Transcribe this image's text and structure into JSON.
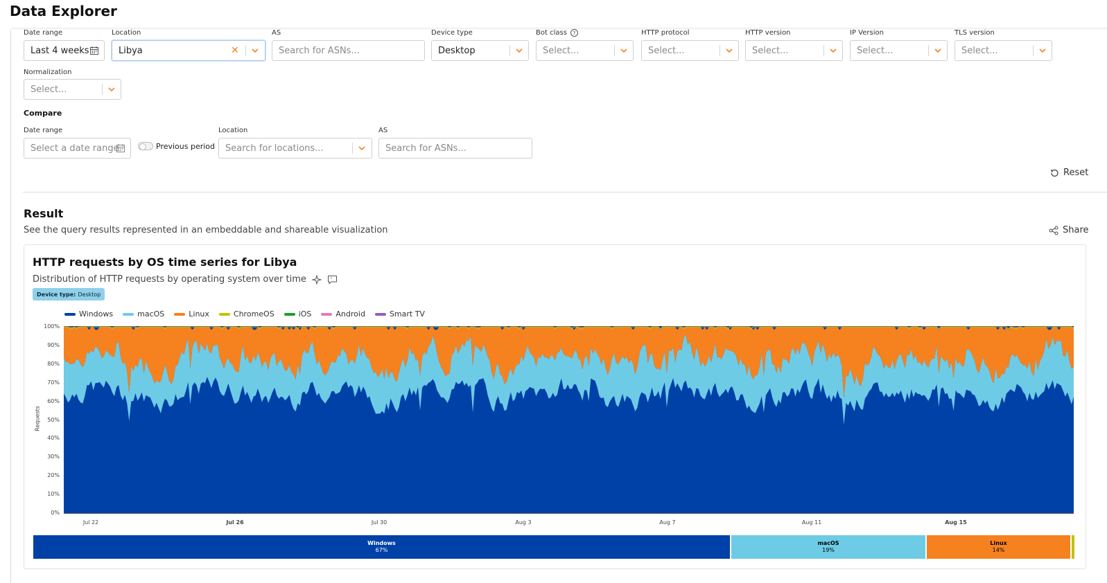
{
  "page": {
    "title": "Data Explorer"
  },
  "filters": {
    "date_range": {
      "label": "Date range",
      "value": "Last 4 weeks"
    },
    "location": {
      "label": "Location",
      "value": "Libya"
    },
    "as": {
      "label": "AS",
      "placeholder": "Search for ASNs..."
    },
    "device_type": {
      "label": "Device type",
      "value": "Desktop"
    },
    "bot_class": {
      "label": "Bot class",
      "placeholder": "Select..."
    },
    "http_protocol": {
      "label": "HTTP protocol",
      "placeholder": "Select..."
    },
    "http_version": {
      "label": "HTTP version",
      "placeholder": "Select..."
    },
    "ip_version": {
      "label": "IP Version",
      "placeholder": "Select..."
    },
    "tls_version": {
      "label": "TLS version",
      "placeholder": "Select..."
    },
    "normalization": {
      "label": "Normalization",
      "placeholder": "Select..."
    }
  },
  "compare": {
    "title": "Compare",
    "date_range": {
      "label": "Date range",
      "placeholder": "Select a date range"
    },
    "previous_period": "Previous period",
    "location": {
      "label": "Location",
      "placeholder": "Search for locations..."
    },
    "as": {
      "label": "AS",
      "placeholder": "Search for ASNs..."
    },
    "reset_label": "Reset"
  },
  "result": {
    "title": "Result",
    "subtitle": "See the query results represented in an embeddable and shareable visualization",
    "share_label": "Share"
  },
  "card": {
    "title": "HTTP requests by OS time series for Libya",
    "description": "Distribution of HTTP requests by operating system over time",
    "badge_key": "Device type:",
    "badge_value": "Desktop"
  },
  "colors": {
    "windows": "#0041a8",
    "macos": "#6ecbe6",
    "linux": "#f5821f",
    "chromeos": "#c2c20a",
    "ios": "#1f9e2c",
    "android": "#e07bbd",
    "smarttv": "#8b5fc7",
    "accent": "#f6821f"
  },
  "chart_data": {
    "type": "area",
    "stacked": true,
    "normalized": true,
    "ylabel": "Requests",
    "y_ticks": [
      "0%",
      "10%",
      "20%",
      "30%",
      "40%",
      "50%",
      "60%",
      "70%",
      "80%",
      "90%",
      "100%"
    ],
    "ylim": [
      0,
      100
    ],
    "x_ticks": [
      {
        "label": "Jul 22",
        "bold": false
      },
      {
        "label": "Jul 26",
        "bold": true
      },
      {
        "label": "Jul 30",
        "bold": false
      },
      {
        "label": "Aug 3",
        "bold": false
      },
      {
        "label": "Aug 7",
        "bold": false
      },
      {
        "label": "Aug 11",
        "bold": false
      },
      {
        "label": "Aug 15",
        "bold": true
      }
    ],
    "x_start": "Jul 21",
    "x_end": "Aug 18",
    "legend_position": "top-left",
    "series": [
      {
        "name": "Windows",
        "color": "#0041a8",
        "share_pct": 67
      },
      {
        "name": "macOS",
        "color": "#6ecbe6",
        "share_pct": 19
      },
      {
        "name": "Linux",
        "color": "#f5821f",
        "share_pct": 14
      },
      {
        "name": "ChromeOS",
        "color": "#c2c20a",
        "share_pct": 0.4
      },
      {
        "name": "iOS",
        "color": "#1f9e2c",
        "share_pct": 0
      },
      {
        "name": "Android",
        "color": "#e07bbd",
        "share_pct": 0
      },
      {
        "name": "Smart TV",
        "color": "#8b5fc7",
        "share_pct": 0
      }
    ],
    "summary": [
      {
        "name": "Windows",
        "pct_label": "67%"
      },
      {
        "name": "macOS",
        "pct_label": "19%"
      },
      {
        "name": "Linux",
        "pct_label": "14%"
      }
    ]
  }
}
